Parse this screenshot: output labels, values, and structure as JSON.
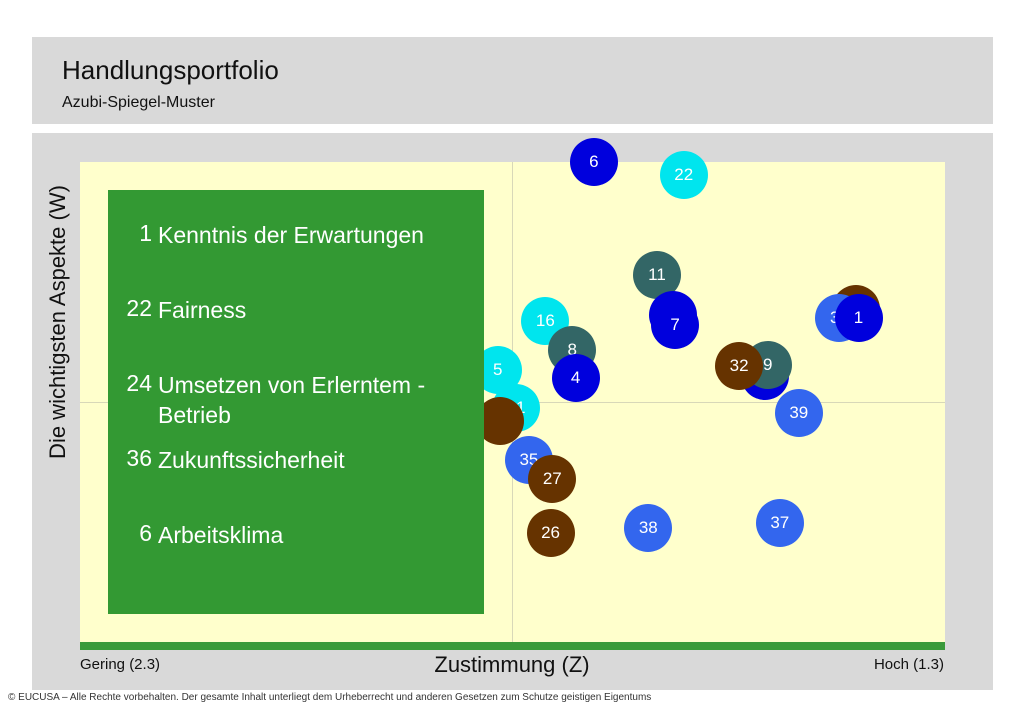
{
  "header": {
    "title": "Handlungsportfolio",
    "subtitle": "Azubi-Spiegel-Muster"
  },
  "chart_data": {
    "type": "scatter",
    "xlabel": "Zustimmung (Z)",
    "ylabel": "Die wichtigsten Aspekte (W)",
    "x_min_label": "Gering (2.3)",
    "x_max_label": "Hoch (1.3)",
    "grid": "one vertical and one horizontal divider line (quadrants)",
    "points": [
      {
        "label": "6",
        "x": 0.594,
        "y": 1.0,
        "color": "#0000dd"
      },
      {
        "label": "22",
        "x": 0.698,
        "y": 0.968,
        "color": "#00e5ee"
      },
      {
        "label": "11",
        "x": 0.667,
        "y": 0.713,
        "color": "#336666"
      },
      {
        "label": "",
        "x": 0.897,
        "y": 0.629,
        "color": "#663300"
      },
      {
        "label": "36",
        "x": 0.878,
        "y": 0.606,
        "color": "#3366ee"
      },
      {
        "label": "1",
        "x": 0.9,
        "y": 0.606,
        "color": "#0000dd"
      },
      {
        "label": "6",
        "x": 0.685,
        "y": 0.613,
        "color": "#0000dd"
      },
      {
        "label": "7",
        "x": 0.688,
        "y": 0.587,
        "color": "#0000dd"
      },
      {
        "label": "16",
        "x": 0.538,
        "y": 0.597,
        "color": "#00e5ee"
      },
      {
        "label": "8",
        "x": 0.569,
        "y": 0.523,
        "color": "#336666"
      },
      {
        "label": "4",
        "x": 0.573,
        "y": 0.452,
        "color": "#0000dd"
      },
      {
        "label": "",
        "x": 0.792,
        "y": 0.458,
        "color": "#0000dd"
      },
      {
        "label": "9",
        "x": 0.795,
        "y": 0.487,
        "color": "#336666"
      },
      {
        "label": "32",
        "x": 0.762,
        "y": 0.484,
        "color": "#663300"
      },
      {
        "label": "39",
        "x": 0.831,
        "y": 0.364,
        "color": "#3366ee"
      },
      {
        "label": "21",
        "x": 0.504,
        "y": 0.377,
        "color": "#00e5ee"
      },
      {
        "label": "35",
        "x": 0.519,
        "y": 0.245,
        "color": "#3366ee"
      },
      {
        "label": "27",
        "x": 0.546,
        "y": 0.197,
        "color": "#663300"
      },
      {
        "label": "26",
        "x": 0.544,
        "y": 0.061,
        "color": "#663300"
      },
      {
        "label": "38",
        "x": 0.657,
        "y": 0.074,
        "color": "#3366ee"
      },
      {
        "label": "37",
        "x": 0.809,
        "y": 0.087,
        "color": "#3366ee"
      },
      {
        "label": "",
        "x": 0.485,
        "y": 0.345,
        "color": "#663300"
      },
      {
        "label": "5",
        "x": 0.483,
        "y": 0.474,
        "color": "#00e5ee"
      }
    ]
  },
  "legend": {
    "items": [
      {
        "num": "1",
        "text": "Kenntnis der Erwartungen"
      },
      {
        "num": "22",
        "text": "Fairness"
      },
      {
        "num": "24",
        "text": "Umsetzen von Erlerntem - Betrieb"
      },
      {
        "num": "36",
        "text": "Zukunftssicherheit"
      },
      {
        "num": "6",
        "text": "Arbeitsklima"
      }
    ]
  },
  "footer": {
    "text": "© EUCUSA – Alle Rechte vorbehalten. Der gesamte Inhalt unterliegt dem Urheberrecht und anderen Gesetzen zum Schutze geistigen Eigentums"
  }
}
